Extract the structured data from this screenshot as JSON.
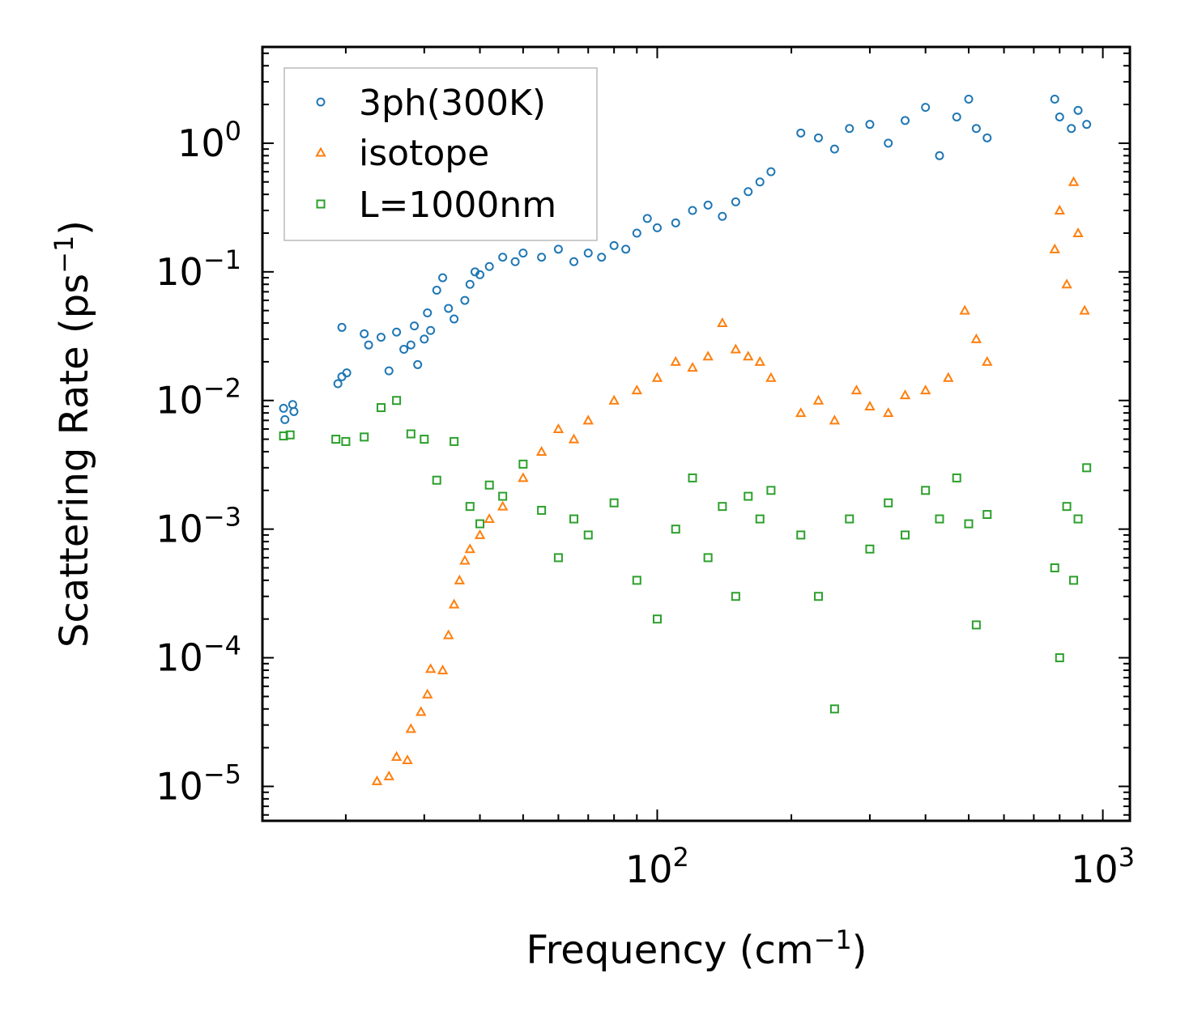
{
  "chart_data": {
    "type": "scatter",
    "xscale": "log",
    "yscale": "log",
    "xlim": [
      13,
      1150
    ],
    "ylim": [
      5.4e-06,
      5.6
    ],
    "xlabel": {
      "prefix": "Frequency (cm",
      "sup": "−1",
      "suffix": ")"
    },
    "ylabel": {
      "prefix": "Scattering Rate (ps",
      "sup": "−1",
      "suffix": ")"
    },
    "xticks": [
      {
        "value": 100,
        "base": "10",
        "exp": "2"
      },
      {
        "value": 1000,
        "base": "10",
        "exp": "3"
      }
    ],
    "yticks": [
      {
        "value": 1,
        "base": "10",
        "exp": "0"
      },
      {
        "value": 0.1,
        "base": "10",
        "exp": "−1"
      },
      {
        "value": 0.01,
        "base": "10",
        "exp": "−2"
      },
      {
        "value": 0.001,
        "base": "10",
        "exp": "−3"
      },
      {
        "value": 0.0001,
        "base": "10",
        "exp": "−4"
      },
      {
        "value": 1e-05,
        "base": "10",
        "exp": "−5"
      }
    ],
    "legend_position": "top-left",
    "series": [
      {
        "name": "3ph(300K)",
        "marker": "circle",
        "color": "#1f77b4",
        "points": [
          [
            14.5,
            0.0087
          ],
          [
            14.6,
            0.0071
          ],
          [
            15.2,
            0.0093
          ],
          [
            15.3,
            0.0082
          ],
          [
            19.2,
            0.0135
          ],
          [
            19.6,
            0.0153
          ],
          [
            20.1,
            0.0164
          ],
          [
            19.6,
            0.037
          ],
          [
            22,
            0.033
          ],
          [
            22.5,
            0.027
          ],
          [
            24,
            0.031
          ],
          [
            25,
            0.017
          ],
          [
            26,
            0.034
          ],
          [
            27,
            0.025
          ],
          [
            28,
            0.027
          ],
          [
            28.5,
            0.038
          ],
          [
            29,
            0.019
          ],
          [
            30,
            0.03
          ],
          [
            30.5,
            0.048
          ],
          [
            31,
            0.035
          ],
          [
            32,
            0.072
          ],
          [
            33,
            0.09
          ],
          [
            34,
            0.052
          ],
          [
            35,
            0.043
          ],
          [
            37,
            0.06
          ],
          [
            38,
            0.08
          ],
          [
            39,
            0.1
          ],
          [
            40,
            0.095
          ],
          [
            42,
            0.11
          ],
          [
            45,
            0.13
          ],
          [
            48,
            0.12
          ],
          [
            50,
            0.14
          ],
          [
            55,
            0.13
          ],
          [
            60,
            0.15
          ],
          [
            65,
            0.12
          ],
          [
            70,
            0.14
          ],
          [
            75,
            0.13
          ],
          [
            80,
            0.16
          ],
          [
            85,
            0.15
          ],
          [
            90,
            0.2
          ],
          [
            95,
            0.26
          ],
          [
            100,
            0.22
          ],
          [
            110,
            0.24
          ],
          [
            120,
            0.3
          ],
          [
            130,
            0.33
          ],
          [
            140,
            0.27
          ],
          [
            150,
            0.35
          ],
          [
            160,
            0.42
          ],
          [
            170,
            0.5
          ],
          [
            180,
            0.6
          ],
          [
            210,
            1.2
          ],
          [
            230,
            1.1
          ],
          [
            250,
            0.9
          ],
          [
            270,
            1.3
          ],
          [
            300,
            1.4
          ],
          [
            330,
            1.0
          ],
          [
            360,
            1.5
          ],
          [
            400,
            1.9
          ],
          [
            430,
            0.8
          ],
          [
            470,
            1.6
          ],
          [
            500,
            2.2
          ],
          [
            520,
            1.3
          ],
          [
            550,
            1.1
          ],
          [
            780,
            2.2
          ],
          [
            800,
            1.6
          ],
          [
            850,
            1.3
          ],
          [
            880,
            1.8
          ],
          [
            920,
            1.4
          ]
        ]
      },
      {
        "name": "isotope",
        "marker": "triangle",
        "color": "#ff7f0e",
        "points": [
          [
            23.5,
            1.1e-05
          ],
          [
            25,
            1.2e-05
          ],
          [
            26,
            1.7e-05
          ],
          [
            27.5,
            1.6e-05
          ],
          [
            28,
            2.8e-05
          ],
          [
            29.5,
            3.8e-05
          ],
          [
            30.5,
            5.2e-05
          ],
          [
            31,
            8.2e-05
          ],
          [
            33,
            8e-05
          ],
          [
            34,
            0.00015
          ],
          [
            35,
            0.00026
          ],
          [
            36,
            0.0004
          ],
          [
            37,
            0.00057
          ],
          [
            38,
            0.0007
          ],
          [
            40,
            0.0009
          ],
          [
            42,
            0.0012
          ],
          [
            45,
            0.0015
          ],
          [
            50,
            0.0025
          ],
          [
            55,
            0.004
          ],
          [
            60,
            0.006
          ],
          [
            65,
            0.005
          ],
          [
            70,
            0.007
          ],
          [
            80,
            0.01
          ],
          [
            90,
            0.012
          ],
          [
            100,
            0.015
          ],
          [
            110,
            0.02
          ],
          [
            120,
            0.018
          ],
          [
            130,
            0.022
          ],
          [
            140,
            0.04
          ],
          [
            150,
            0.025
          ],
          [
            160,
            0.022
          ],
          [
            170,
            0.02
          ],
          [
            180,
            0.015
          ],
          [
            210,
            0.008
          ],
          [
            230,
            0.01
          ],
          [
            250,
            0.007
          ],
          [
            280,
            0.012
          ],
          [
            300,
            0.009
          ],
          [
            330,
            0.008
          ],
          [
            360,
            0.011
          ],
          [
            400,
            0.012
          ],
          [
            450,
            0.015
          ],
          [
            490,
            0.05
          ],
          [
            520,
            0.03
          ],
          [
            550,
            0.02
          ],
          [
            780,
            0.15
          ],
          [
            800,
            0.3
          ],
          [
            830,
            0.08
          ],
          [
            860,
            0.5
          ],
          [
            880,
            0.2
          ],
          [
            910,
            0.05
          ]
        ]
      },
      {
        "name": "L=1000nm",
        "marker": "square",
        "color": "#2ca02c",
        "points": [
          [
            14.5,
            0.0053
          ],
          [
            15,
            0.0054
          ],
          [
            19,
            0.005
          ],
          [
            20,
            0.0048
          ],
          [
            22,
            0.0052
          ],
          [
            24,
            0.0088
          ],
          [
            26,
            0.01
          ],
          [
            28,
            0.0055
          ],
          [
            30,
            0.005
          ],
          [
            32,
            0.0024
          ],
          [
            35,
            0.0048
          ],
          [
            38,
            0.0015
          ],
          [
            40,
            0.0011
          ],
          [
            42,
            0.0022
          ],
          [
            45,
            0.0018
          ],
          [
            50,
            0.0032
          ],
          [
            55,
            0.0014
          ],
          [
            60,
            0.0006
          ],
          [
            65,
            0.0012
          ],
          [
            70,
            0.0009
          ],
          [
            80,
            0.0016
          ],
          [
            90,
            0.0004
          ],
          [
            100,
            0.0002
          ],
          [
            110,
            0.001
          ],
          [
            120,
            0.0025
          ],
          [
            130,
            0.0006
          ],
          [
            140,
            0.0015
          ],
          [
            150,
            0.0003
          ],
          [
            160,
            0.0018
          ],
          [
            170,
            0.0012
          ],
          [
            180,
            0.002
          ],
          [
            210,
            0.0009
          ],
          [
            230,
            0.0003
          ],
          [
            250,
            4e-05
          ],
          [
            270,
            0.0012
          ],
          [
            300,
            0.0007
          ],
          [
            330,
            0.0016
          ],
          [
            360,
            0.0009
          ],
          [
            400,
            0.002
          ],
          [
            430,
            0.0012
          ],
          [
            470,
            0.0025
          ],
          [
            500,
            0.0011
          ],
          [
            520,
            0.00018
          ],
          [
            550,
            0.0013
          ],
          [
            780,
            0.0005
          ],
          [
            800,
            0.0001
          ],
          [
            830,
            0.0015
          ],
          [
            860,
            0.0004
          ],
          [
            880,
            0.0012
          ],
          [
            920,
            0.003
          ]
        ]
      }
    ]
  }
}
